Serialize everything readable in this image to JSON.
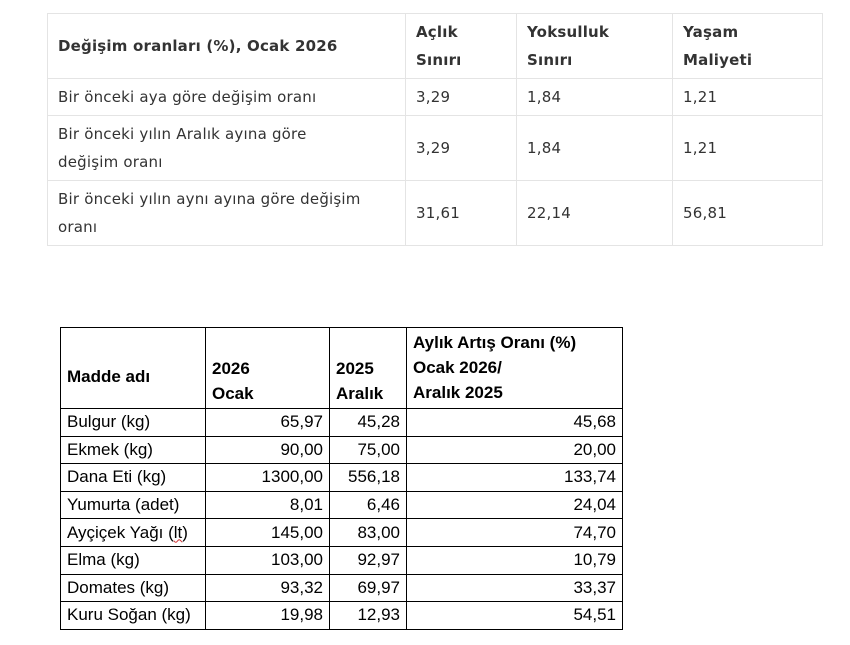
{
  "rates_table": {
    "headers": {
      "label": "Değişim oranları (%), Ocak 2026",
      "hunger_line": "Açlık\nSınırı",
      "poverty_line": "Yoksulluk\nSınırı",
      "living_cost": "Yaşam\nMaliyeti"
    },
    "rows": [
      {
        "label": "Bir önceki aya göre değişim oranı",
        "hunger": "3,29",
        "poverty": "1,84",
        "living": "1,21"
      },
      {
        "label": "Bir önceki yılın Aralık ayına göre\ndeğişim oranı",
        "hunger": "3,29",
        "poverty": "1,84",
        "living": "1,21"
      },
      {
        "label": "Bir önceki yılın aynı ayına göre değişim\noranı",
        "hunger": "31,61",
        "poverty": "22,14",
        "living": "56,81"
      }
    ]
  },
  "prices_table": {
    "headers": {
      "item": "Madde adı",
      "col_2026": "2026\nOcak",
      "col_2025": "2025\nAralık",
      "change": "Aylık Artış Oranı (%)\nOcak 2026/\nAralık 2025"
    },
    "rows": [
      {
        "item": "Bulgur (kg)",
        "v2026": "65,97",
        "v2025": "45,28",
        "rate": "45,68"
      },
      {
        "item": "Ekmek (kg)",
        "v2026": "90,00",
        "v2025": "75,00",
        "rate": "20,00"
      },
      {
        "item": "Dana Eti (kg)",
        "v2026": "1300,00",
        "v2025": "556,18",
        "rate": "133,74"
      },
      {
        "item": "Yumurta (adet)",
        "v2026": "8,01",
        "v2025": "6,46",
        "rate": "24,04"
      },
      {
        "item": "Ayçiçek Yağı (lt)",
        "v2026": "145,00",
        "v2025": "83,00",
        "rate": "74,70"
      },
      {
        "item": "Elma (kg)",
        "v2026": "103,00",
        "v2025": "92,97",
        "rate": "10,79"
      },
      {
        "item": "Domates (kg)",
        "v2026": "93,32",
        "v2025": "69,97",
        "rate": "33,37"
      },
      {
        "item": "Kuru Soğan (kg)",
        "v2026": "19,98",
        "v2025": "12,93",
        "rate": "54,51"
      }
    ]
  }
}
